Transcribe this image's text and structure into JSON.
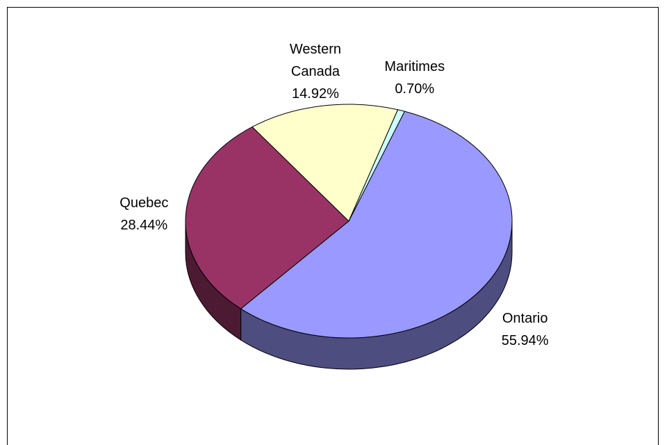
{
  "chart_data": {
    "type": "pie",
    "categories": [
      "Ontario",
      "Quebec",
      "Western Canada",
      "Maritimes"
    ],
    "values": [
      55.94,
      28.44,
      14.92,
      0.7
    ],
    "value_labels": [
      "55.94%",
      "28.44%",
      "14.92%",
      "0.70%"
    ],
    "colors": [
      "#9999ff",
      "#993366",
      "#ffffcc",
      "#ccffff"
    ]
  }
}
